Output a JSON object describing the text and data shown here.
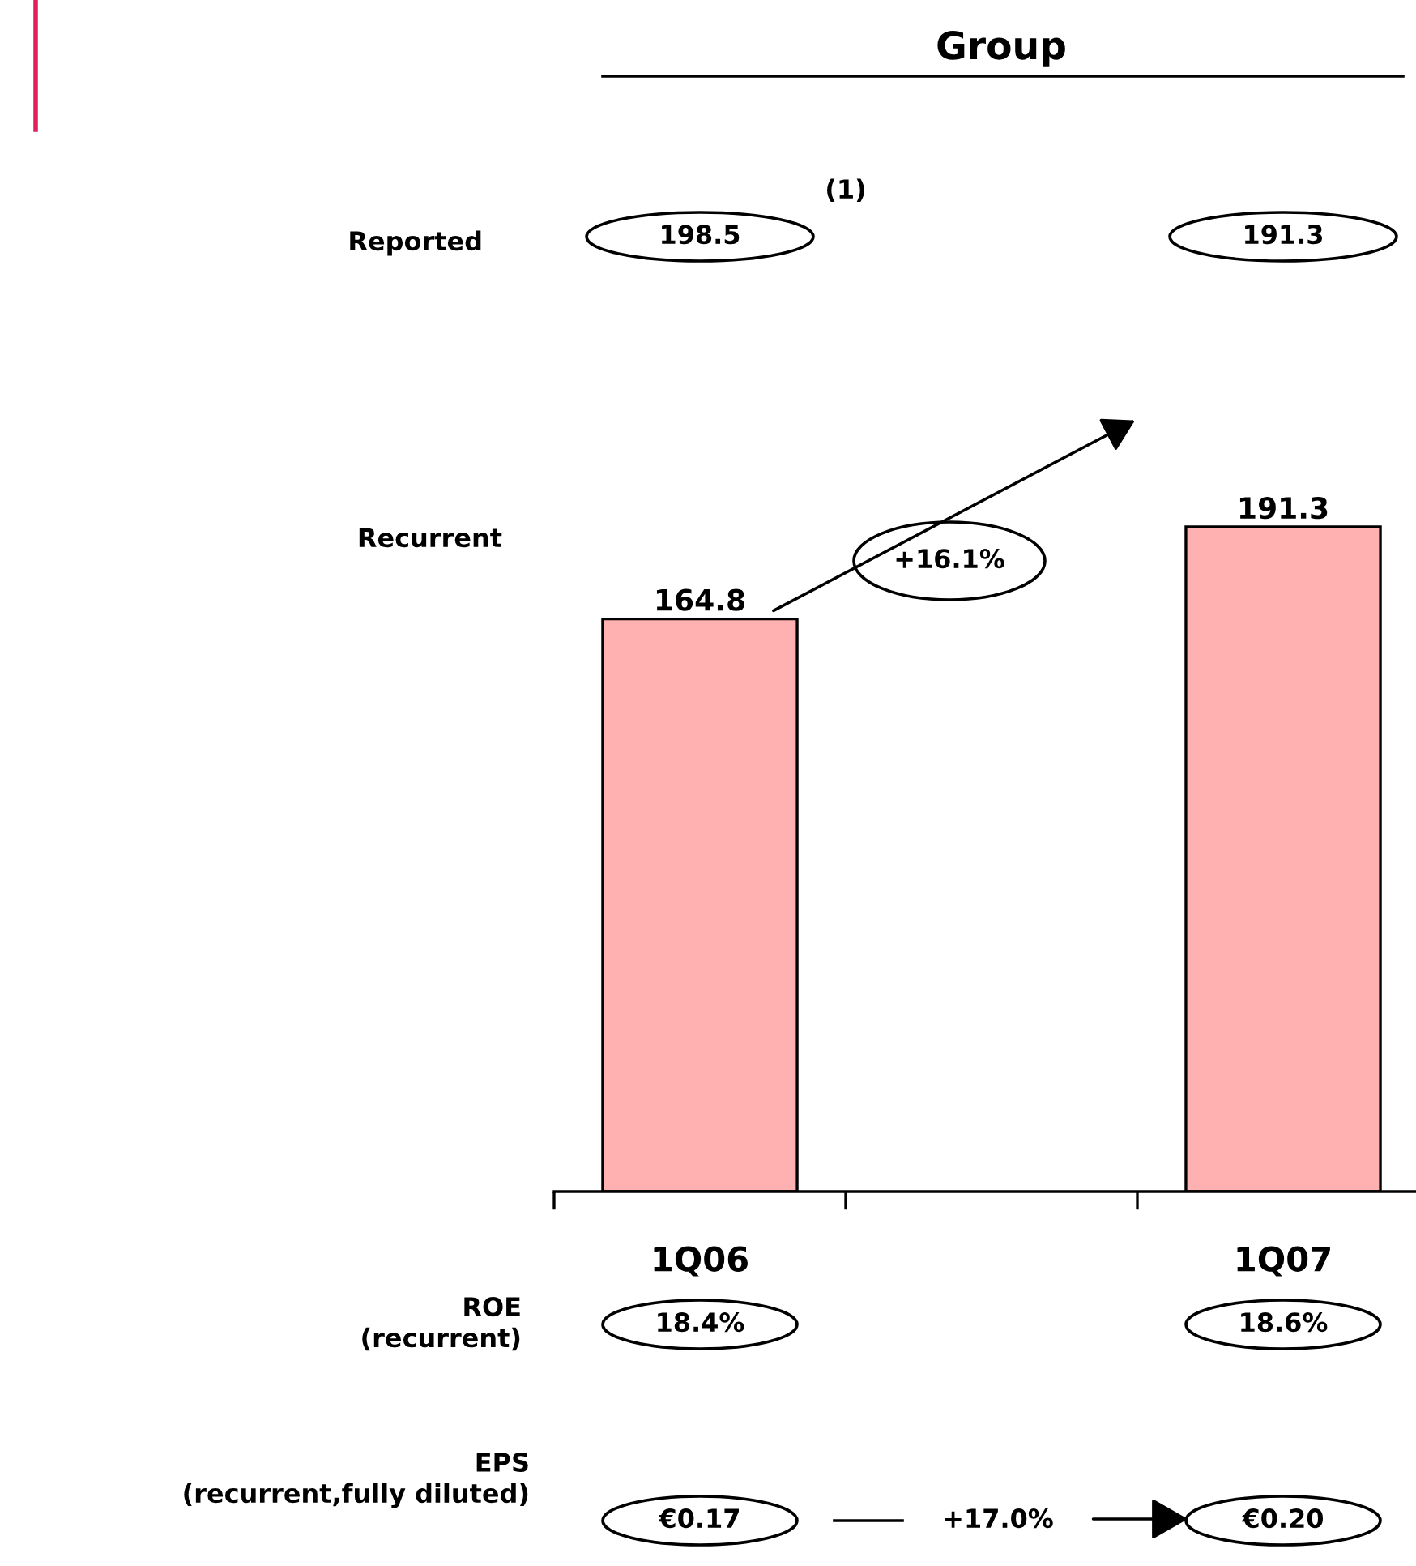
{
  "chart_data": {
    "type": "bar",
    "title": "Group",
    "categories": [
      "1Q06",
      null,
      "1Q07"
    ],
    "values": [
      164.8,
      null,
      191.3
    ],
    "color": "#ffb0b0",
    "tick_labels": "x",
    "data_labels": true,
    "grid": false,
    "legend": false,
    "annotations": [
      "Reported",
      "198.5",
      "(1)",
      "191.3",
      "Recurrent",
      "+16.1%",
      "ROE\n(recurrent)",
      "18.4%",
      "18.6%",
      "EPS\n(recurrent,fully diluted)",
      "€0.17",
      "+17.0%",
      "€0.20"
    ]
  }
}
